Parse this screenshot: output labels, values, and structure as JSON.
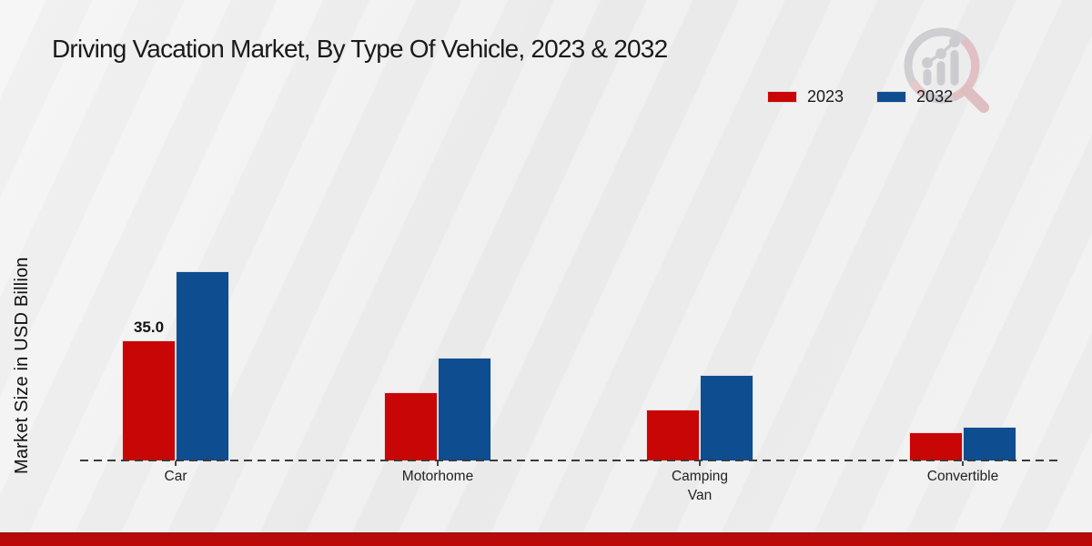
{
  "chart_data": {
    "type": "bar",
    "title": "Driving Vacation Market, By Type Of Vehicle, 2023 & 2032",
    "ylabel": "Market Size in USD Billion",
    "xlabel": "",
    "categories": [
      "Car",
      "Motorhome",
      "Camping\nVan",
      "Convertible"
    ],
    "series": [
      {
        "name": "2023",
        "color": "#c80606",
        "values": [
          35.0,
          20.0,
          15.0,
          8.4
        ]
      },
      {
        "name": "2032",
        "color": "#0e4d90",
        "values": [
          55.0,
          30.0,
          25.0,
          10.0
        ]
      }
    ],
    "annotations": [
      {
        "series": 0,
        "category": 0,
        "text": "35.0"
      }
    ],
    "ylim": [
      0,
      58
    ],
    "grid": false,
    "legend_position": "top-right",
    "axis_style": "dashed-baseline-no-ticks-values"
  },
  "branding": {
    "footer_bar_color": "#b90909",
    "watermark_name": "magnifier-bar-chart-logo"
  }
}
